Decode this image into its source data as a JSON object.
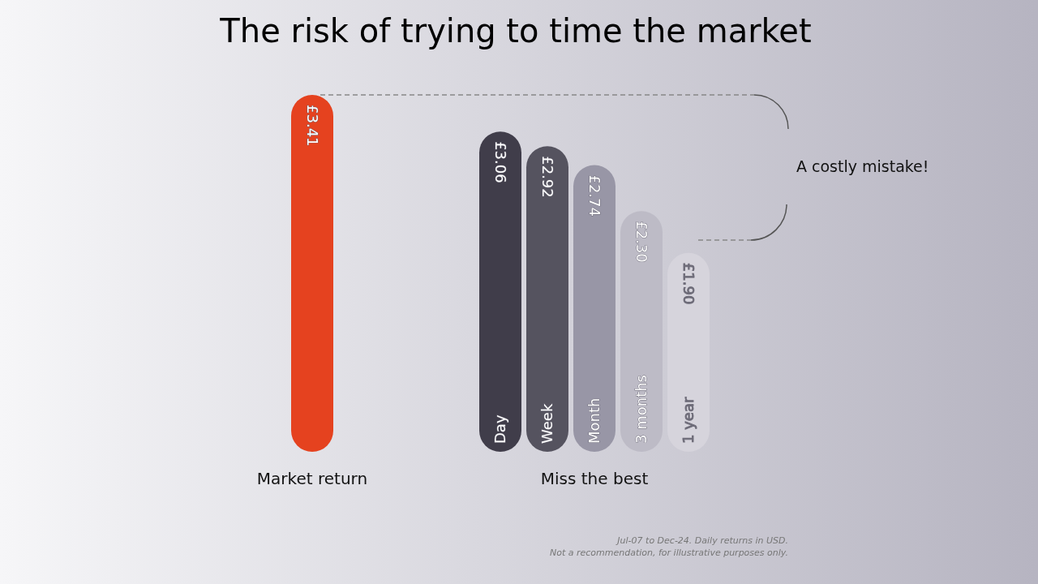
{
  "chart_data": {
    "type": "bar",
    "title": "The risk of trying to time the market",
    "categories": [
      "Market return",
      null,
      null,
      null,
      "Day",
      "Week",
      "Month",
      "3 months",
      "1 year"
    ],
    "values": [
      3.41,
      null,
      null,
      null,
      3.06,
      2.92,
      2.74,
      2.3,
      1.9
    ],
    "value_labels": [
      "£3.41",
      null,
      null,
      null,
      "£3.06",
      "£2.92",
      "£2.74",
      "£2.30",
      "£1.90"
    ],
    "colors": [
      "#e5421f",
      null,
      null,
      null,
      "#403d4a",
      "#55535f",
      "#9896a6",
      "#bdbbc6",
      "#d6d4dc"
    ],
    "annotations": [
      "Miss the best",
      "A costly mistake!",
      "Jul-07 to Dec-24. Daily returns in USD.",
      "Not a recommendation, for illustrative purposes only."
    ]
  }
}
